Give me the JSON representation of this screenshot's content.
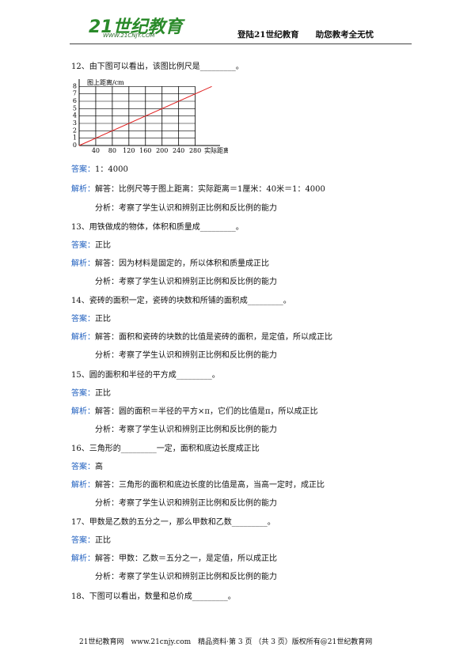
{
  "header": {
    "logo_main": "21世纪教育",
    "logo_url": "WWW.21CNJY.COM",
    "slogan": "登陆21世纪教育　　助您教考全无忧"
  },
  "questions": [
    {
      "stem": "12、由下图可以看出，该图比例尺是_________。",
      "answer_label": "答案：",
      "answer": "1：4000",
      "analysis_label": "解析：",
      "analysis": "解答：比例尺等于图上距离：实际距离＝1厘米：40米＝1：4000",
      "comment": "分析：考察了学生认识和辨别正比例和反比例的能力"
    },
    {
      "stem": "13、用铁做成的物体，体积和质量成_________。",
      "answer_label": "答案：",
      "answer": "正比",
      "analysis_label": "解析：",
      "analysis": "解答：因为材料是固定的，所以体积和质量成正比",
      "comment": "分析：考察了学生认识和辨别正比例和反比例的能力"
    },
    {
      "stem": "14、瓷砖的面积一定，瓷砖的块数和所铺的面积成_________。",
      "answer_label": "答案：",
      "answer": "正比",
      "analysis_label": "解析：",
      "analysis": "解答：面积和瓷砖的块数的比值是瓷砖的面积，是定值，所以成正比",
      "comment": "分析：考察了学生认识和辨别正比例和反比例的能力"
    },
    {
      "stem": "15、圆的面积和半径的平方成_________。",
      "answer_label": "答案：",
      "answer": "正比",
      "analysis_label": "解析：",
      "analysis": "解答：圆的面积＝半径的平方×π，它们的比值是π，所以成正比",
      "comment": "分析：考察了学生认识和辨别正比例和反比例的能力"
    },
    {
      "stem": "16、三角形的_________一定，面积和底边长度成正比",
      "answer_label": "答案：",
      "answer": "高",
      "analysis_label": "解析：",
      "analysis": "解答：三角形的面积和底边长度的比值是高，当高一定时，成正比",
      "comment": "分析：考察了学生认识和辨别正比例和反比例的能力"
    },
    {
      "stem": "17、甲数是乙数的五分之一，那么甲数和乙数_________。",
      "answer_label": "答案：",
      "answer": "正比",
      "analysis_label": "解析：",
      "analysis": "解答：甲数：乙数＝五分之一，是定值，所以成正比",
      "comment": "分析：考察了学生认识和辨别正比例和反比例的能力"
    },
    {
      "stem": "18、下图可以看出，数量和总价成_________。"
    }
  ],
  "figure": {
    "y_label": "图上距离/cm",
    "x_label": "实际距离",
    "xlim": [
      0,
      340
    ],
    "ylim": [
      0,
      9
    ],
    "xticks": [
      40,
      80,
      120,
      160,
      200,
      240,
      280
    ],
    "yticks": [
      0,
      1,
      2,
      3,
      4,
      5,
      6,
      7,
      8
    ],
    "x": [
      0,
      320
    ],
    "y": [
      0,
      8
    ],
    "color": "#e02020"
  },
  "footer": "21世纪教育网　www.21cnjy.com　精品资料·第 3 页 （共 3 页）版权所有@21世纪教育网"
}
